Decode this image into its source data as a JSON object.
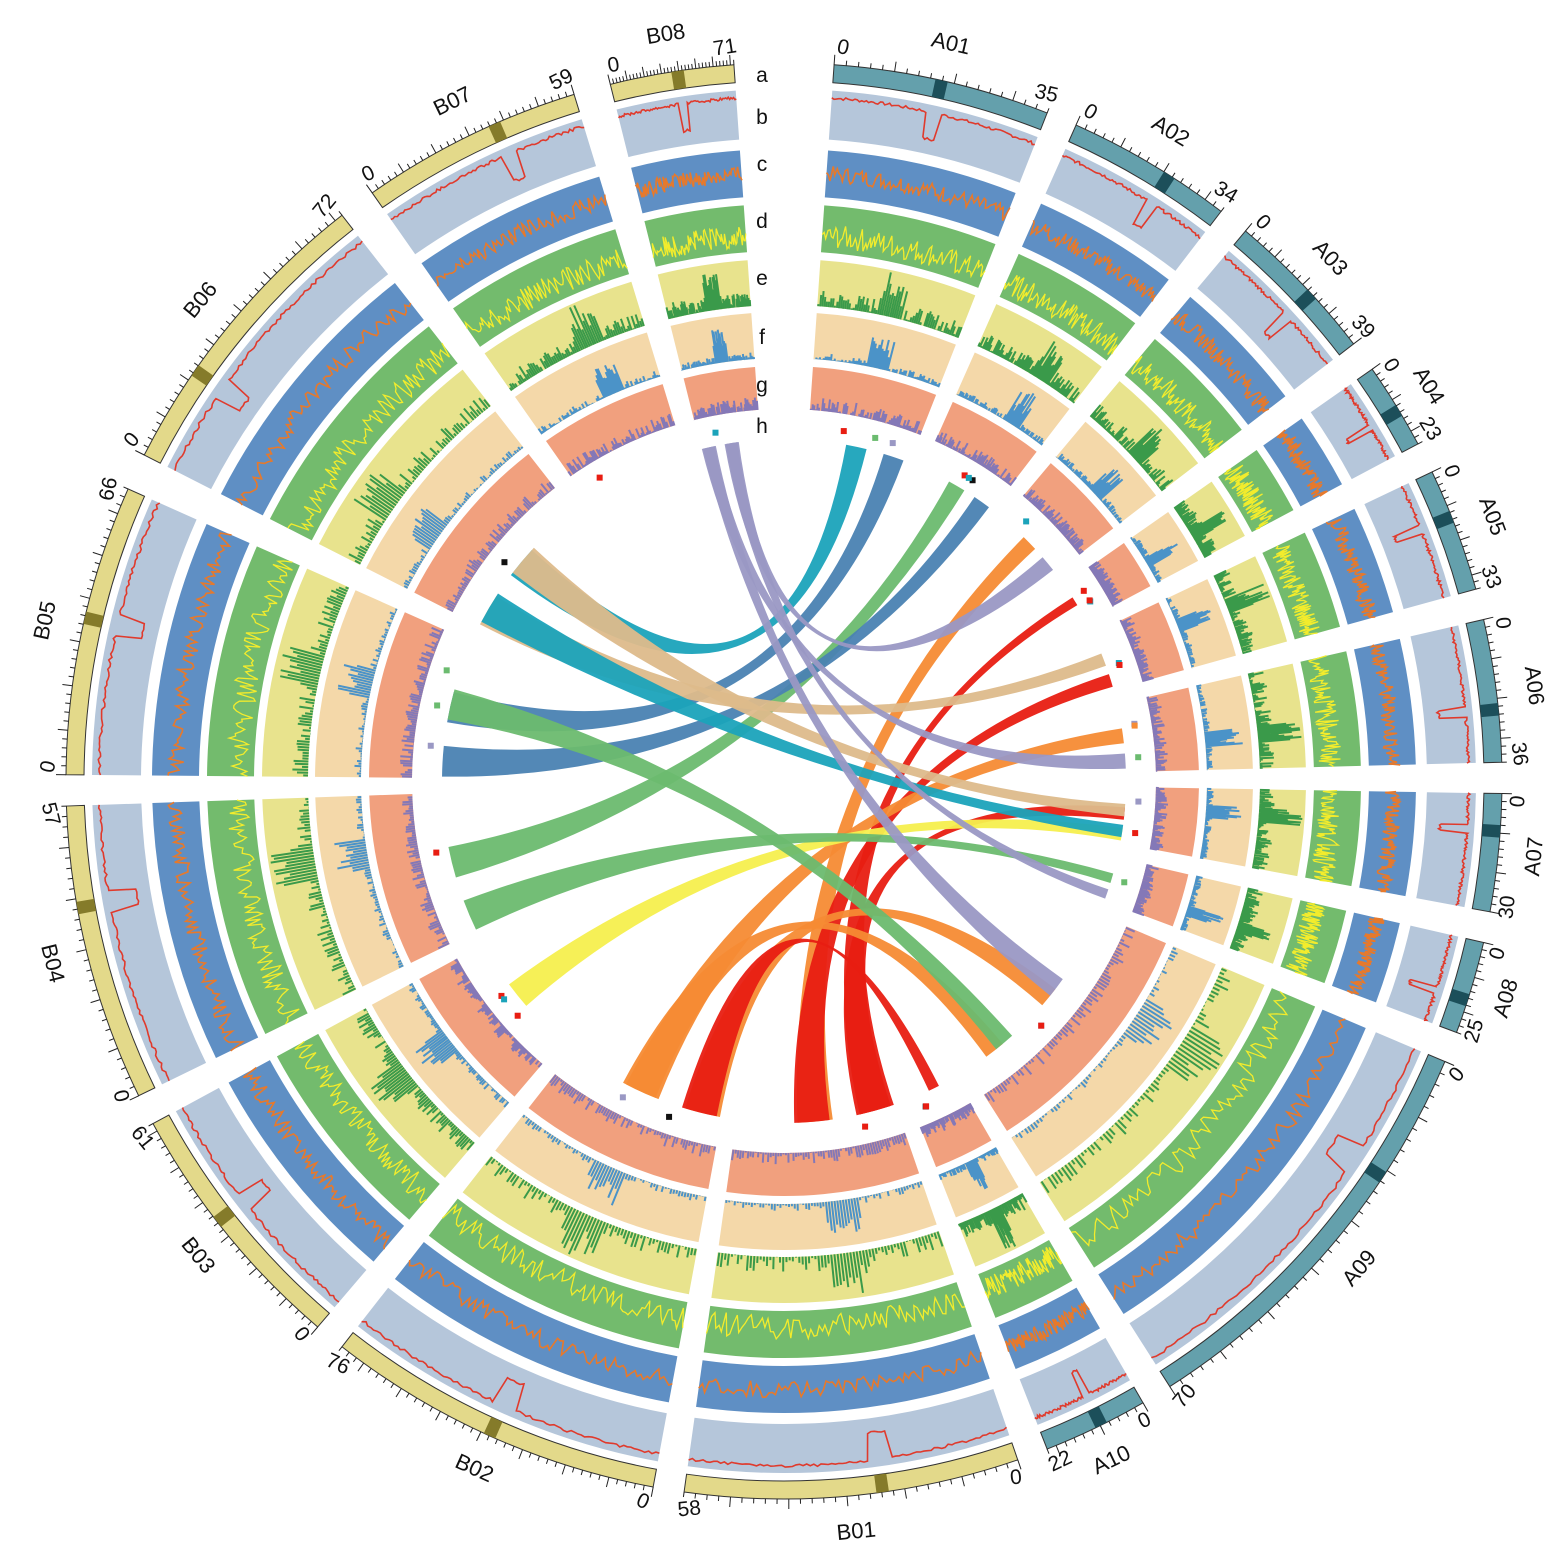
{
  "track_letters": [
    "a",
    "b",
    "c",
    "d",
    "e",
    "f",
    "g",
    "h"
  ],
  "colors": {
    "subgenome_A_ideogram": "#64a0ac",
    "subgenome_B_ideogram": "#e3d98a",
    "centromere_A": "#1c4f5a",
    "centromere_B": "#857b2a",
    "track_b_bg": "#b5c6da",
    "track_b_line": "#e03a2c",
    "track_c_bg": "#5f8fc4",
    "track_c_line": "#e7792b",
    "track_d_bg": "#73bb6d",
    "track_d_line": "#f3ec2c",
    "track_e_bg": "#e8e38d",
    "track_e_fill": "#3a9a4a",
    "track_f_bg": "#f4d8a9",
    "track_f_fill": "#4b93c8",
    "track_g_bg": "#f1a07e",
    "track_g_fill": "#8478b7"
  },
  "chromosomes": [
    {
      "name": "A01",
      "length": 35,
      "start_label": "0",
      "end_label": "35",
      "genome": "A"
    },
    {
      "name": "A02",
      "length": 34,
      "start_label": "0",
      "end_label": "34",
      "genome": "A"
    },
    {
      "name": "A03",
      "length": 39,
      "start_label": "0",
      "end_label": "39",
      "genome": "A"
    },
    {
      "name": "A04",
      "length": 23,
      "start_label": "0",
      "end_label": "23",
      "genome": "A"
    },
    {
      "name": "A05",
      "length": 33,
      "start_label": "0",
      "end_label": "33",
      "genome": "A"
    },
    {
      "name": "A06",
      "length": 36,
      "start_label": "0",
      "end_label": "36",
      "genome": "A"
    },
    {
      "name": "A07",
      "length": 30,
      "start_label": "0",
      "end_label": "30",
      "genome": "A"
    },
    {
      "name": "A08",
      "length": 25,
      "start_label": "0",
      "end_label": "25",
      "genome": "A"
    },
    {
      "name": "A09",
      "length": 70,
      "start_label": "0",
      "end_label": "70",
      "genome": "A"
    },
    {
      "name": "A10",
      "length": 22,
      "start_label": "0",
      "end_label": "22",
      "genome": "A"
    },
    {
      "name": "B01",
      "length": 58,
      "start_label": "0",
      "end_label": "58",
      "genome": "B"
    },
    {
      "name": "B02",
      "length": 76,
      "start_label": "0",
      "end_label": "76",
      "genome": "B"
    },
    {
      "name": "B03",
      "length": 61,
      "start_label": "0",
      "end_label": "61",
      "genome": "B"
    },
    {
      "name": "B04",
      "length": 57,
      "start_label": "0",
      "end_label": "57",
      "genome": "B"
    },
    {
      "name": "B05",
      "length": 66,
      "start_label": "0",
      "end_label": "66",
      "genome": "B"
    },
    {
      "name": "B06",
      "length": 72,
      "start_label": "0",
      "end_label": "72",
      "genome": "B"
    },
    {
      "name": "B07",
      "length": 59,
      "start_label": "0",
      "end_label": "59",
      "genome": "B"
    },
    {
      "name": "B08",
      "length": 71,
      "start_label": "0",
      "end_label": "71",
      "genome": "B"
    }
  ],
  "links": [
    {
      "from": "A01",
      "to": "B06",
      "color": "#1ba3ba"
    },
    {
      "from": "A01",
      "to": "B05",
      "color": "#4a82b2"
    },
    {
      "from": "A02",
      "to": "B04",
      "color": "#6bbb6f"
    },
    {
      "from": "A02",
      "to": "B05",
      "color": "#4a82b2"
    },
    {
      "from": "A03",
      "to": "B01",
      "color": "#f68b34"
    },
    {
      "from": "A03",
      "to": "B08",
      "color": "#9a98c4"
    },
    {
      "from": "A04",
      "to": "B01",
      "color": "#e81d12"
    },
    {
      "from": "A05",
      "to": "B06",
      "color": "#ddba8b"
    },
    {
      "from": "A05",
      "to": "B01",
      "color": "#e81d12"
    },
    {
      "from": "A06",
      "to": "B02",
      "color": "#f68b34"
    },
    {
      "from": "A06",
      "to": "B08",
      "color": "#9a98c4"
    },
    {
      "from": "A07",
      "to": "B01",
      "color": "#e81d12"
    },
    {
      "from": "A07",
      "to": "B03",
      "color": "#f5ef4e"
    },
    {
      "from": "A07",
      "to": "B06",
      "color": "#ddba8b"
    },
    {
      "from": "A07",
      "to": "B06",
      "color": "#1ba3ba"
    },
    {
      "from": "A08",
      "to": "B04",
      "color": "#6bbb6f"
    },
    {
      "from": "A08",
      "to": "B08",
      "color": "#9a98c4"
    },
    {
      "from": "A09",
      "to": "B02",
      "color": "#f68b34"
    },
    {
      "from": "A09",
      "to": "B02",
      "color": "#f68b34"
    },
    {
      "from": "A09",
      "to": "B08",
      "color": "#9a98c4"
    },
    {
      "from": "A09",
      "to": "B05",
      "color": "#6bbb6f"
    },
    {
      "from": "A10",
      "to": "B02",
      "color": "#e81d12"
    }
  ]
}
